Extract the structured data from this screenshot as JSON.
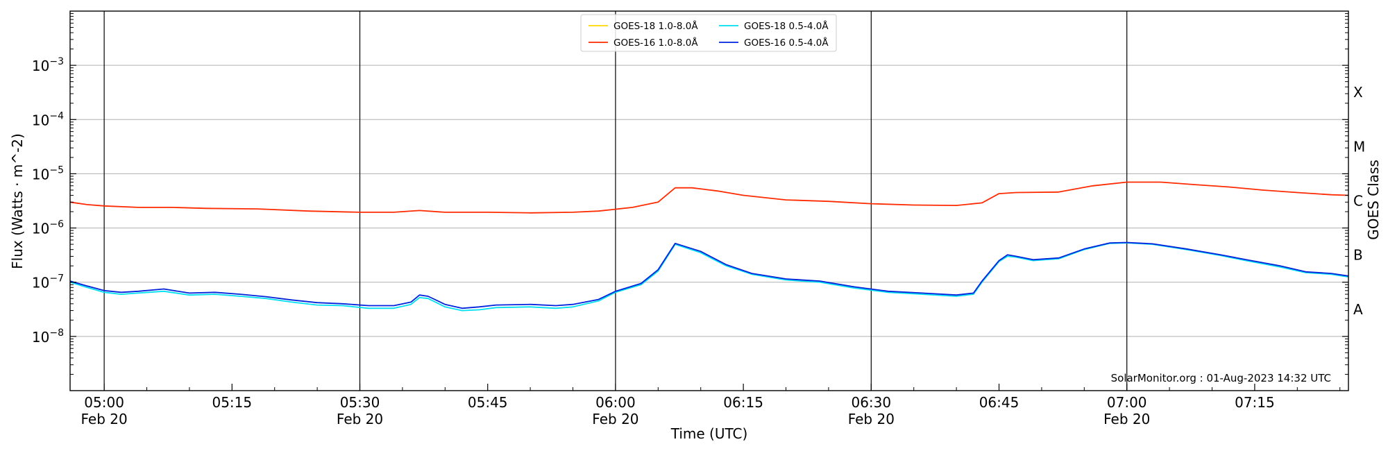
{
  "chart_data": {
    "type": "line",
    "title": "",
    "xlabel": "Time (UTC)",
    "ylabel": "Flux (Watts · m^-2)",
    "y2label": "GOES Class",
    "yscale": "log",
    "ylim": [
      1e-09,
      0.01
    ],
    "xlim": [
      "04:56",
      "07:26"
    ],
    "grid": "horizontal at decades",
    "legend_location": "top-center",
    "credit": "SolarMonitor.org : 01-Aug-2023 14:32 UTC",
    "x_ticks": [
      {
        "time": "05:00",
        "label": "05:00",
        "date": "Feb 20",
        "major": true
      },
      {
        "time": "05:15",
        "label": "05:15",
        "date": "",
        "major": false
      },
      {
        "time": "05:30",
        "label": "05:30",
        "date": "Feb 20",
        "major": true
      },
      {
        "time": "05:45",
        "label": "05:45",
        "date": "",
        "major": false
      },
      {
        "time": "06:00",
        "label": "06:00",
        "date": "Feb 20",
        "major": true
      },
      {
        "time": "06:15",
        "label": "06:15",
        "date": "",
        "major": false
      },
      {
        "time": "06:30",
        "label": "06:30",
        "date": "Feb 20",
        "major": true
      },
      {
        "time": "06:45",
        "label": "06:45",
        "date": "",
        "major": false
      },
      {
        "time": "07:00",
        "label": "07:00",
        "date": "Feb 20",
        "major": true
      },
      {
        "time": "07:15",
        "label": "07:15",
        "date": "",
        "major": false
      }
    ],
    "y_ticks": [
      {
        "value": 1e-08,
        "label": "10",
        "exp": "−8"
      },
      {
        "value": 1e-07,
        "label": "10",
        "exp": "−7"
      },
      {
        "value": 1e-06,
        "label": "10",
        "exp": "−6"
      },
      {
        "value": 1e-05,
        "label": "10",
        "exp": "−5"
      },
      {
        "value": 0.0001,
        "label": "10",
        "exp": "−4"
      },
      {
        "value": 0.001,
        "label": "10",
        "exp": "−3"
      }
    ],
    "goes_classes": [
      {
        "label": "A",
        "value": 3.16e-08
      },
      {
        "label": "B",
        "value": 3.16e-07
      },
      {
        "label": "C",
        "value": 3.16e-06
      },
      {
        "label": "M",
        "value": 3.16e-05
      },
      {
        "label": "X",
        "value": 0.000316
      }
    ],
    "series": [
      {
        "name": "GOES-18 1.0-8.0Å",
        "color": "#ffd700",
        "x": [],
        "y": []
      },
      {
        "name": "GOES-16 1.0-8.0Å",
        "color": "#ff2a00",
        "x": [
          "04:56",
          "04:58",
          "05:00",
          "05:04",
          "05:08",
          "05:12",
          "05:18",
          "05:24",
          "05:30",
          "05:34",
          "05:37",
          "05:40",
          "05:45",
          "05:50",
          "05:55",
          "05:58",
          "06:02",
          "06:05",
          "06:07",
          "06:09",
          "06:12",
          "06:15",
          "06:20",
          "06:25",
          "06:30",
          "06:35",
          "06:40",
          "06:43",
          "06:45",
          "06:47",
          "06:52",
          "06:56",
          "07:00",
          "07:04",
          "07:08",
          "07:12",
          "07:16",
          "07:20",
          "07:24",
          "07:26"
        ],
        "y": [
          3e-06,
          2.7e-06,
          2.55e-06,
          2.4e-06,
          2.4e-06,
          2.3e-06,
          2.25e-06,
          2.05e-06,
          1.95e-06,
          1.95e-06,
          2.1e-06,
          1.95e-06,
          1.95e-06,
          1.9e-06,
          1.95e-06,
          2.05e-06,
          2.4e-06,
          3e-06,
          5.5e-06,
          5.5e-06,
          4.8e-06,
          4e-06,
          3.3e-06,
          3.1e-06,
          2.8e-06,
          2.65e-06,
          2.6e-06,
          2.9e-06,
          4.3e-06,
          4.5e-06,
          4.6e-06,
          6e-06,
          7e-06,
          7e-06,
          6.3e-06,
          5.7e-06,
          5e-06,
          4.5e-06,
          4.1e-06,
          4e-06
        ]
      },
      {
        "name": "GOES-18 0.5-4.0Å",
        "color": "#00e0f0",
        "x": [
          "04:56",
          "04:58",
          "05:00",
          "05:02",
          "05:04",
          "05:07",
          "05:10",
          "05:13",
          "05:16",
          "05:19",
          "05:22",
          "05:25",
          "05:28",
          "05:31",
          "05:34",
          "05:36",
          "05:37",
          "05:38",
          "05:40",
          "05:42",
          "05:44",
          "05:46",
          "05:50",
          "05:53",
          "05:55",
          "05:58",
          "06:00",
          "06:03",
          "06:05",
          "06:07",
          "06:10",
          "06:13",
          "06:16",
          "06:20",
          "06:24",
          "06:28",
          "06:32",
          "06:36",
          "06:40",
          "06:42",
          "06:43",
          "06:45",
          "06:46",
          "06:47",
          "06:49",
          "06:52",
          "06:55",
          "06:58",
          "07:00",
          "07:03",
          "07:07",
          "07:11",
          "07:14",
          "07:18",
          "07:21",
          "07:24",
          "07:26"
        ],
        "y": [
          1e-07,
          8e-08,
          6.5e-08,
          6e-08,
          6.3e-08,
          6.8e-08,
          5.8e-08,
          6e-08,
          5.5e-08,
          5e-08,
          4.3e-08,
          3.8e-08,
          3.7e-08,
          3.3e-08,
          3.3e-08,
          3.9e-08,
          5.2e-08,
          5e-08,
          3.5e-08,
          3e-08,
          3.1e-08,
          3.4e-08,
          3.5e-08,
          3.3e-08,
          3.5e-08,
          4.5e-08,
          6.5e-08,
          9e-08,
          1.6e-07,
          5e-07,
          3.5e-07,
          2e-07,
          1.4e-07,
          1.1e-07,
          1e-07,
          7.8e-08,
          6.5e-08,
          6e-08,
          5.5e-08,
          6e-08,
          1e-07,
          2.4e-07,
          3e-07,
          2.9e-07,
          2.5e-07,
          2.7e-07,
          4e-07,
          5.2e-07,
          5.3e-07,
          5e-07,
          4e-07,
          3.1e-07,
          2.5e-07,
          1.9e-07,
          1.5e-07,
          1.4e-07,
          1.25e-07
        ]
      },
      {
        "name": "GOES-16 0.5-4.0Å",
        "color": "#0022dd",
        "x": [
          "04:56",
          "04:58",
          "05:00",
          "05:02",
          "05:04",
          "05:07",
          "05:10",
          "05:13",
          "05:16",
          "05:19",
          "05:22",
          "05:25",
          "05:28",
          "05:31",
          "05:34",
          "05:36",
          "05:37",
          "05:38",
          "05:40",
          "05:42",
          "05:44",
          "05:46",
          "05:50",
          "05:53",
          "05:55",
          "05:58",
          "06:00",
          "06:03",
          "06:05",
          "06:07",
          "06:10",
          "06:13",
          "06:16",
          "06:20",
          "06:24",
          "06:28",
          "06:32",
          "06:36",
          "06:40",
          "06:42",
          "06:43",
          "06:45",
          "06:46",
          "06:47",
          "06:49",
          "06:52",
          "06:55",
          "06:58",
          "07:00",
          "07:03",
          "07:07",
          "07:11",
          "07:14",
          "07:18",
          "07:21",
          "07:24",
          "07:26"
        ],
        "y": [
          1.05e-07,
          8.5e-08,
          7e-08,
          6.5e-08,
          6.8e-08,
          7.5e-08,
          6.3e-08,
          6.5e-08,
          6e-08,
          5.4e-08,
          4.7e-08,
          4.2e-08,
          4e-08,
          3.7e-08,
          3.7e-08,
          4.3e-08,
          5.8e-08,
          5.5e-08,
          3.9e-08,
          3.3e-08,
          3.5e-08,
          3.8e-08,
          3.9e-08,
          3.7e-08,
          3.9e-08,
          4.8e-08,
          6.8e-08,
          9.5e-08,
          1.7e-07,
          5.2e-07,
          3.7e-07,
          2.1e-07,
          1.45e-07,
          1.15e-07,
          1.05e-07,
          8.2e-08,
          6.8e-08,
          6.3e-08,
          5.8e-08,
          6.3e-08,
          1.05e-07,
          2.5e-07,
          3.2e-07,
          3e-07,
          2.6e-07,
          2.8e-07,
          4.1e-07,
          5.3e-07,
          5.4e-07,
          5.1e-07,
          4.1e-07,
          3.2e-07,
          2.6e-07,
          2e-07,
          1.55e-07,
          1.45e-07,
          1.3e-07
        ]
      }
    ]
  }
}
